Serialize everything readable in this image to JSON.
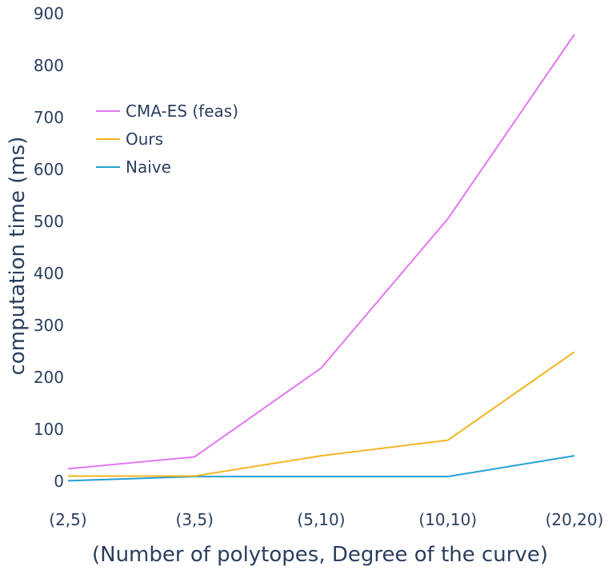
{
  "chart_data": {
    "type": "line",
    "title": "",
    "xlabel": "(Number of polytopes, Degree of the curve)",
    "ylabel": "computation time (ms)",
    "categories": [
      "(2,5)",
      "(3,5)",
      "(5,10)",
      "(10,10)",
      "(20,20)"
    ],
    "ylim": [
      0,
      900
    ],
    "yticks": [
      0,
      100,
      200,
      300,
      400,
      500,
      600,
      700,
      800,
      900
    ],
    "grid": false,
    "legend_position": "upper-left",
    "series": [
      {
        "name": "CMA-ES (feas)",
        "color": "#e377f2",
        "values": [
          24,
          47,
          218,
          505,
          860
        ]
      },
      {
        "name": "Ours",
        "color": "#f2b521",
        "values": [
          10,
          10,
          49,
          79,
          249
        ]
      },
      {
        "name": "Naive",
        "color": "#26a0d6",
        "values": [
          1,
          9,
          9,
          9,
          49
        ]
      }
    ]
  }
}
